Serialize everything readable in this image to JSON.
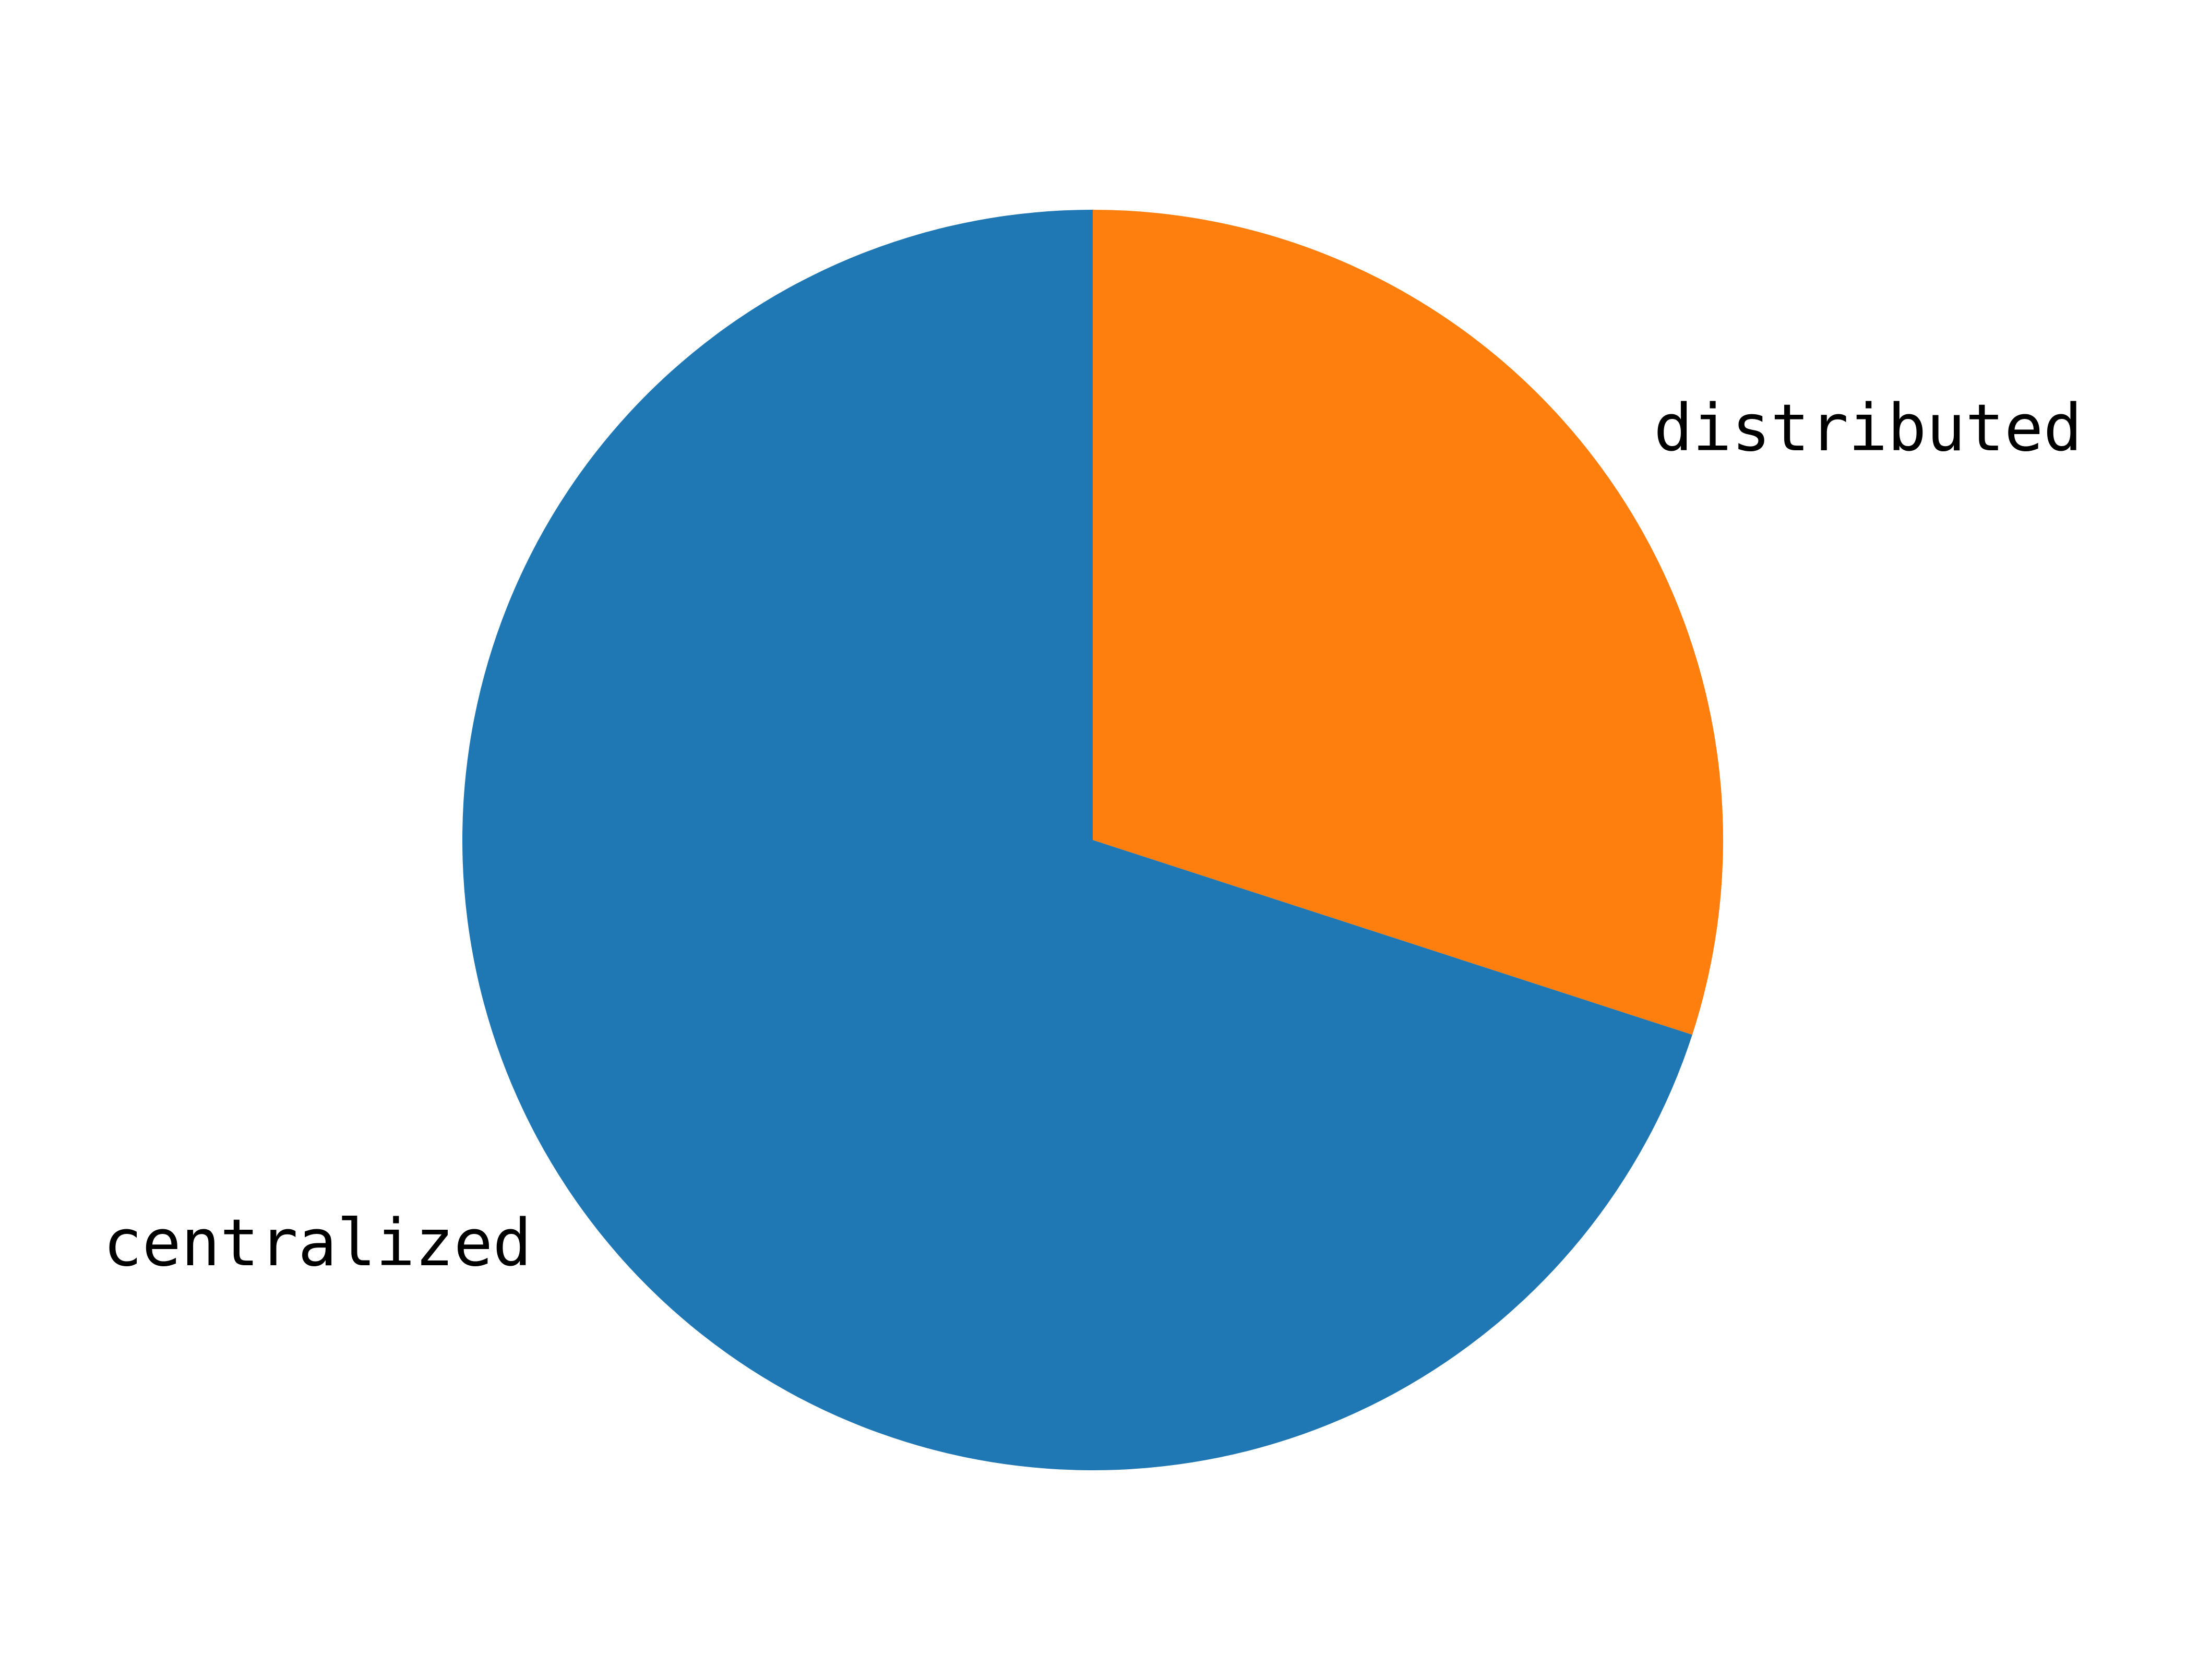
{
  "chart_data": {
    "type": "pie",
    "title": "",
    "slices": [
      {
        "label": "distributed",
        "value": 30,
        "color": "#ff7f0e"
      },
      {
        "label": "centralized",
        "value": 70,
        "color": "#1f77b4"
      }
    ],
    "start_angle": "top",
    "direction": "clockwise",
    "labels_outside": true,
    "legend": false
  }
}
